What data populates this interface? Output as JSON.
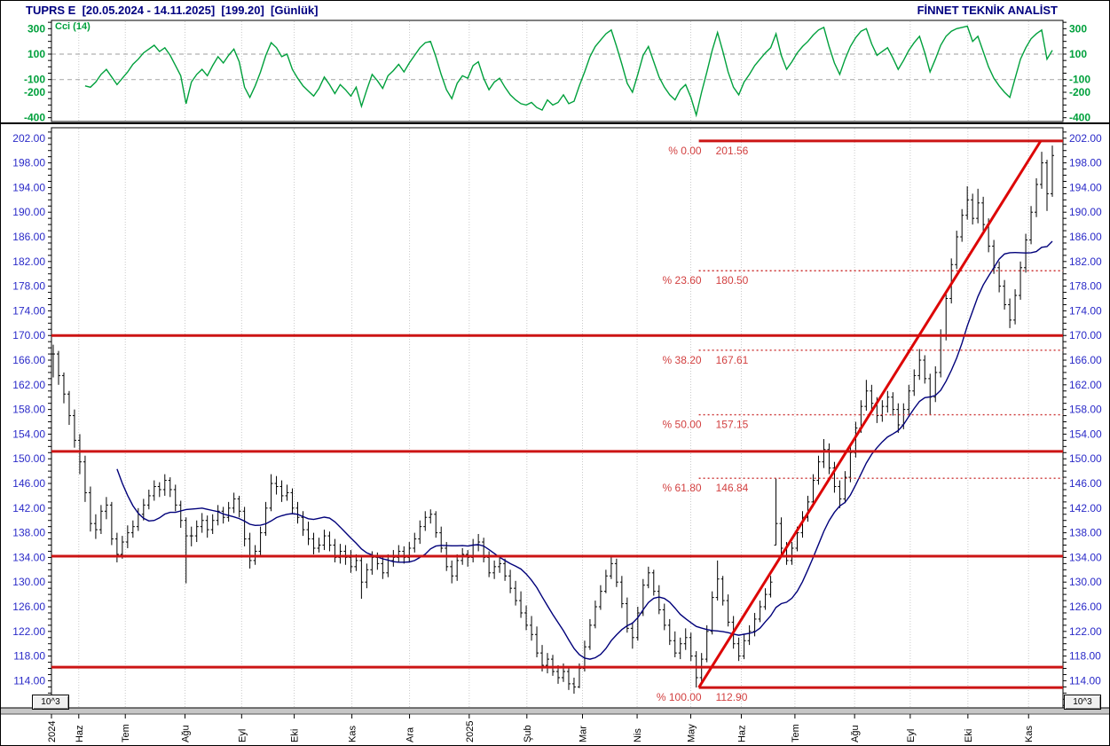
{
  "header": {
    "left": "TUPRS E  [20.05.2024 - 14.11.2025]  [199.20]  [Günlük]",
    "right": "FİNNET TEKNİK ANALİST",
    "symbol": "TUPRS E",
    "date_range": "20.05.2024 - 14.11.2025",
    "last_price": "199.20",
    "period": "Günlük"
  },
  "axes": {
    "scale_note": "10^3"
  },
  "colors": {
    "header_text": "#000080",
    "price_label": "#2a2ac8",
    "cci_green": "#00a03c",
    "bar_black": "#000000",
    "ma_navy": "#00007a",
    "red_line": "#cc1414",
    "red_dotted": "#cc3333",
    "red_label": "#d24040",
    "trend_red": "#dd0606",
    "grid": "#c9c9c9",
    "dash_gray": "#b0b0b0",
    "band_gray": "#c6c6c6"
  },
  "chart_data": [
    {
      "type": "line",
      "title": "Cci (14)",
      "ylim": [
        -430,
        365
      ],
      "yticks_labeled": [
        300,
        100,
        -100,
        -200,
        -400
      ],
      "ytick_minor_step": 50,
      "dashed_levels": [
        100,
        -100
      ],
      "legend_position": "top-left",
      "grid": "vertical-dotted",
      "values": [
        null,
        null,
        null,
        null,
        null,
        null,
        -150,
        -160,
        -120,
        -60,
        -20,
        -80,
        -140,
        -90,
        -40,
        20,
        60,
        110,
        140,
        170,
        120,
        150,
        90,
        10,
        -70,
        -290,
        -120,
        -60,
        -20,
        -70,
        10,
        80,
        30,
        90,
        140,
        40,
        -160,
        -240,
        -150,
        -40,
        90,
        190,
        150,
        80,
        100,
        -20,
        -90,
        -150,
        -190,
        -230,
        -170,
        -80,
        -140,
        -210,
        -140,
        -180,
        -230,
        -160,
        -310,
        -180,
        -60,
        -110,
        -170,
        -70,
        -30,
        20,
        -40,
        30,
        90,
        150,
        190,
        200,
        80,
        -60,
        -180,
        -250,
        -130,
        -70,
        -90,
        10,
        40,
        -90,
        -180,
        -120,
        -90,
        -160,
        -220,
        -260,
        -290,
        -300,
        -280,
        -320,
        -340,
        -260,
        -300,
        -280,
        -220,
        -290,
        -270,
        -150,
        -40,
        80,
        160,
        210,
        260,
        290,
        160,
        20,
        -130,
        -200,
        -60,
        90,
        160,
        40,
        -80,
        -160,
        -220,
        -260,
        -180,
        -140,
        -240,
        -380,
        -200,
        -40,
        130,
        270,
        120,
        -40,
        -160,
        -220,
        -120,
        -60,
        10,
        60,
        110,
        150,
        260,
        90,
        -20,
        40,
        110,
        160,
        200,
        250,
        290,
        310,
        160,
        30,
        -60,
        60,
        160,
        230,
        280,
        300,
        180,
        90,
        120,
        150,
        70,
        -20,
        50,
        130,
        190,
        240,
        110,
        -40,
        60,
        170,
        240,
        280,
        300,
        310,
        320,
        200,
        240,
        120,
        0,
        -90,
        -150,
        -200,
        -240,
        -90,
        60,
        150,
        220,
        260,
        290,
        60,
        130
      ]
    },
    {
      "type": "ohlc",
      "title": "TUPRS daily price",
      "period": "Günlük",
      "ylim": [
        109.6,
        203.7
      ],
      "ylabel_min": 114,
      "ylabel_max": 202,
      "ylabel_step": 4,
      "ytick_minor_step": 1,
      "grid": "vertical-dotted",
      "ma_period": 13,
      "support_lines": [
        170.0,
        151.2,
        134.2,
        116.2
      ],
      "fibonacci": {
        "anchor_x_frac": 0.64,
        "levels": [
          {
            "pct": "% 0.00",
            "value": "201.56",
            "price": 201.56,
            "style": "solid"
          },
          {
            "pct": "% 23.60",
            "value": "180.50",
            "price": 180.5,
            "style": "dotted"
          },
          {
            "pct": "% 38.20",
            "value": "167.61",
            "price": 167.61,
            "style": "dotted"
          },
          {
            "pct": "% 50.00",
            "value": "157.15",
            "price": 157.15,
            "style": "dotted"
          },
          {
            "pct": "% 61.80",
            "value": "146.84",
            "price": 146.84,
            "style": "dotted"
          },
          {
            "pct": "% 100.00",
            "value": "112.90",
            "price": 112.9,
            "style": "solid"
          }
        ]
      },
      "trendline": {
        "x1_frac": 0.64,
        "price1": 112.9,
        "x2_frac": 0.978,
        "price2": 201.56
      },
      "months": [
        {
          "f": 0.0,
          "label": "2024"
        },
        {
          "f": 0.027,
          "label": "Haz"
        },
        {
          "f": 0.073,
          "label": "Tem"
        },
        {
          "f": 0.132,
          "label": "Ağu"
        },
        {
          "f": 0.188,
          "label": "Eyl"
        },
        {
          "f": 0.24,
          "label": "Eki"
        },
        {
          "f": 0.297,
          "label": "Kas"
        },
        {
          "f": 0.354,
          "label": "Ara"
        },
        {
          "f": 0.413,
          "label": "2025"
        },
        {
          "f": 0.47,
          "label": "Şub"
        },
        {
          "f": 0.525,
          "label": "Mar"
        },
        {
          "f": 0.579,
          "label": "Nis"
        },
        {
          "f": 0.632,
          "label": "May"
        },
        {
          "f": 0.682,
          "label": "Haz"
        },
        {
          "f": 0.735,
          "label": "Tem"
        },
        {
          "f": 0.794,
          "label": "Ağu"
        },
        {
          "f": 0.849,
          "label": "Eyl"
        },
        {
          "f": 0.906,
          "label": "Eki"
        },
        {
          "f": 0.966,
          "label": "Kas"
        }
      ],
      "bars": [
        [
          168.5,
          163.2,
          167.0
        ],
        [
          167.5,
          162.0,
          163.5
        ],
        [
          164.0,
          159.0,
          160.5
        ],
        [
          161.0,
          155.5,
          157.0
        ],
        [
          158.0,
          151.8,
          153.0
        ],
        [
          154.0,
          147.5,
          149.5
        ],
        [
          150.5,
          143.0,
          144.5
        ],
        [
          145.5,
          138.2,
          139.5
        ],
        [
          141.0,
          137.0,
          138.5
        ],
        [
          142.5,
          137.8,
          141.5
        ],
        [
          143.8,
          140.2,
          142.5
        ],
        [
          143.0,
          136.0,
          137.0
        ],
        [
          138.0,
          133.2,
          134.5
        ],
        [
          137.5,
          133.8,
          136.5
        ],
        [
          139.2,
          135.5,
          138.0
        ],
        [
          140.0,
          137.2,
          139.0
        ],
        [
          142.0,
          138.3,
          141.0
        ],
        [
          143.5,
          140.0,
          142.5
        ],
        [
          145.0,
          141.8,
          144.0
        ],
        [
          146.5,
          143.2,
          145.5
        ],
        [
          146.2,
          143.8,
          145.0
        ],
        [
          147.5,
          144.0,
          146.5
        ],
        [
          147.0,
          143.8,
          145.0
        ],
        [
          145.8,
          141.5,
          142.5
        ],
        [
          143.2,
          138.8,
          140.0
        ],
        [
          140.5,
          129.8,
          137.5
        ],
        [
          139.0,
          135.8,
          137.5
        ],
        [
          140.0,
          136.5,
          139.0
        ],
        [
          141.2,
          138.0,
          140.0
        ],
        [
          140.8,
          137.2,
          138.5
        ],
        [
          141.0,
          137.8,
          140.0
        ],
        [
          142.5,
          139.2,
          141.5
        ],
        [
          142.2,
          139.5,
          140.5
        ],
        [
          143.0,
          139.8,
          142.0
        ],
        [
          144.5,
          141.2,
          143.5
        ],
        [
          144.0,
          140.5,
          141.5
        ],
        [
          142.2,
          135.8,
          137.0
        ],
        [
          138.0,
          132.2,
          133.5
        ],
        [
          136.0,
          132.8,
          135.0
        ],
        [
          139.0,
          134.2,
          138.0
        ],
        [
          143.0,
          137.5,
          142.0
        ],
        [
          147.5,
          141.5,
          146.0
        ],
        [
          147.2,
          144.2,
          145.5
        ],
        [
          146.5,
          143.0,
          144.0
        ],
        [
          145.8,
          143.2,
          144.5
        ],
        [
          145.2,
          141.0,
          142.0
        ],
        [
          143.0,
          139.5,
          140.5
        ],
        [
          141.5,
          137.5,
          138.5
        ],
        [
          139.8,
          136.0,
          137.0
        ],
        [
          138.0,
          134.5,
          135.5
        ],
        [
          137.2,
          134.8,
          136.0
        ],
        [
          138.5,
          135.2,
          137.5
        ],
        [
          138.2,
          135.0,
          136.0
        ],
        [
          137.0,
          133.2,
          134.0
        ],
        [
          136.2,
          133.0,
          135.0
        ],
        [
          136.0,
          132.8,
          134.0
        ],
        [
          135.2,
          131.5,
          132.5
        ],
        [
          134.5,
          131.8,
          133.5
        ],
        [
          134.2,
          127.3,
          130.0
        ],
        [
          133.0,
          129.0,
          132.0
        ],
        [
          135.0,
          131.2,
          134.0
        ],
        [
          134.8,
          132.0,
          133.0
        ],
        [
          134.0,
          130.5,
          131.5
        ],
        [
          134.5,
          130.8,
          133.5
        ],
        [
          135.2,
          132.5,
          134.0
        ],
        [
          136.0,
          133.2,
          135.0
        ],
        [
          135.8,
          133.0,
          134.0
        ],
        [
          136.5,
          133.2,
          135.5
        ],
        [
          138.0,
          134.8,
          137.0
        ],
        [
          140.0,
          136.2,
          139.0
        ],
        [
          141.5,
          138.3,
          140.5
        ],
        [
          141.8,
          139.5,
          141.0
        ],
        [
          141.5,
          137.2,
          138.0
        ],
        [
          139.0,
          134.8,
          135.5
        ],
        [
          136.5,
          131.8,
          132.5
        ],
        [
          133.5,
          129.8,
          131.0
        ],
        [
          134.5,
          130.2,
          133.5
        ],
        [
          135.5,
          132.8,
          134.5
        ],
        [
          135.2,
          132.5,
          134.0
        ],
        [
          137.0,
          133.2,
          136.0
        ],
        [
          137.8,
          135.0,
          136.5
        ],
        [
          137.2,
          133.2,
          134.0
        ],
        [
          135.0,
          130.8,
          131.5
        ],
        [
          133.5,
          130.5,
          132.5
        ],
        [
          134.2,
          131.5,
          133.0
        ],
        [
          133.8,
          130.2,
          131.0
        ],
        [
          132.0,
          128.2,
          129.0
        ],
        [
          130.2,
          126.2,
          127.0
        ],
        [
          128.5,
          124.2,
          125.0
        ],
        [
          126.2,
          122.2,
          123.0
        ],
        [
          124.5,
          120.5,
          121.5
        ],
        [
          122.8,
          117.8,
          118.5
        ],
        [
          119.8,
          115.5,
          116.5
        ],
        [
          118.5,
          115.2,
          117.5
        ],
        [
          118.2,
          114.8,
          115.5
        ],
        [
          116.5,
          113.5,
          114.5
        ],
        [
          116.8,
          113.8,
          115.5
        ],
        [
          116.2,
          112.5,
          113.5
        ],
        [
          114.5,
          111.9,
          113.0
        ],
        [
          116.8,
          112.8,
          116.0
        ],
        [
          120.5,
          115.5,
          119.5
        ],
        [
          124.0,
          119.0,
          123.0
        ],
        [
          127.0,
          122.5,
          126.0
        ],
        [
          129.5,
          125.5,
          128.5
        ],
        [
          132.0,
          128.2,
          131.0
        ],
        [
          134.2,
          130.5,
          133.0
        ],
        [
          133.8,
          129.2,
          130.0
        ],
        [
          131.0,
          125.8,
          126.5
        ],
        [
          127.5,
          121.8,
          122.5
        ],
        [
          123.5,
          119.2,
          121.0
        ],
        [
          126.0,
          120.5,
          125.0
        ],
        [
          130.5,
          124.5,
          129.5
        ],
        [
          132.5,
          129.0,
          131.5
        ],
        [
          132.0,
          127.8,
          128.5
        ],
        [
          129.5,
          124.8,
          125.5
        ],
        [
          126.5,
          122.2,
          123.0
        ],
        [
          124.0,
          119.8,
          120.5
        ],
        [
          122.0,
          117.8,
          118.5
        ],
        [
          121.0,
          117.5,
          120.0
        ],
        [
          122.5,
          119.0,
          121.0
        ],
        [
          121.8,
          117.2,
          118.0
        ],
        [
          118.8,
          112.9,
          114.5
        ],
        [
          118.5,
          113.8,
          117.5
        ],
        [
          123.0,
          117.0,
          122.0
        ],
        [
          128.5,
          121.5,
          127.5
        ],
        [
          133.5,
          127.0,
          130.5
        ],
        [
          131.0,
          126.2,
          127.0
        ],
        [
          128.0,
          122.8,
          123.5
        ],
        [
          124.5,
          119.2,
          120.0
        ],
        [
          121.0,
          117.2,
          118.0
        ],
        [
          121.5,
          117.5,
          120.5
        ],
        [
          123.0,
          119.8,
          122.0
        ],
        [
          125.0,
          121.2,
          124.0
        ],
        [
          127.0,
          123.5,
          126.0
        ],
        [
          129.0,
          125.5,
          128.0
        ],
        [
          131.0,
          127.5,
          130.0
        ],
        [
          146.8,
          136.0,
          139.5
        ],
        [
          140.5,
          134.5,
          135.5
        ],
        [
          136.5,
          132.8,
          133.5
        ],
        [
          136.5,
          132.8,
          135.5
        ],
        [
          139.0,
          135.0,
          138.0
        ],
        [
          141.5,
          137.2,
          140.5
        ],
        [
          144.0,
          139.8,
          143.0
        ],
        [
          147.5,
          142.2,
          146.5
        ],
        [
          150.5,
          145.8,
          149.5
        ],
        [
          153.2,
          148.5,
          151.5
        ],
        [
          152.5,
          147.5,
          148.5
        ],
        [
          149.5,
          144.5,
          145.5
        ],
        [
          146.5,
          142.0,
          143.5
        ],
        [
          148.0,
          142.8,
          147.0
        ],
        [
          152.0,
          146.2,
          151.0
        ],
        [
          156.0,
          150.2,
          155.0
        ],
        [
          159.5,
          154.2,
          158.5
        ],
        [
          162.8,
          157.8,
          161.0
        ],
        [
          162.0,
          158.0,
          159.0
        ],
        [
          160.0,
          155.8,
          157.0
        ],
        [
          159.5,
          156.0,
          158.5
        ],
        [
          161.0,
          157.5,
          160.0
        ],
        [
          160.8,
          157.0,
          158.0
        ],
        [
          159.0,
          154.2,
          155.5
        ],
        [
          159.0,
          154.8,
          158.0
        ],
        [
          162.0,
          157.2,
          161.0
        ],
        [
          164.5,
          160.2,
          163.5
        ],
        [
          167.8,
          162.8,
          166.0
        ],
        [
          166.8,
          162.2,
          163.0
        ],
        [
          163.8,
          157.2,
          160.0
        ],
        [
          165.0,
          159.2,
          164.0
        ],
        [
          171.0,
          163.2,
          170.0
        ],
        [
          177.0,
          169.2,
          176.0
        ],
        [
          182.5,
          175.2,
          181.5
        ],
        [
          187.0,
          180.8,
          186.0
        ],
        [
          190.5,
          185.2,
          189.5
        ],
        [
          194.2,
          188.8,
          192.0
        ],
        [
          193.0,
          188.0,
          189.0
        ],
        [
          193.8,
          188.2,
          191.5
        ],
        [
          192.5,
          187.0,
          188.0
        ],
        [
          189.0,
          183.5,
          184.5
        ],
        [
          185.5,
          180.0,
          181.0
        ],
        [
          182.0,
          177.0,
          178.0
        ],
        [
          179.0,
          174.2,
          175.0
        ],
        [
          176.0,
          171.2,
          172.5
        ],
        [
          177.5,
          171.8,
          176.5
        ],
        [
          182.0,
          175.8,
          181.0
        ],
        [
          186.5,
          180.2,
          185.5
        ],
        [
          191.0,
          184.8,
          190.0
        ],
        [
          195.5,
          189.2,
          194.5
        ],
        [
          199.8,
          193.8,
          198.0
        ],
        [
          198.5,
          190.2,
          193.0
        ],
        [
          200.8,
          192.5,
          199.2
        ]
      ]
    }
  ]
}
